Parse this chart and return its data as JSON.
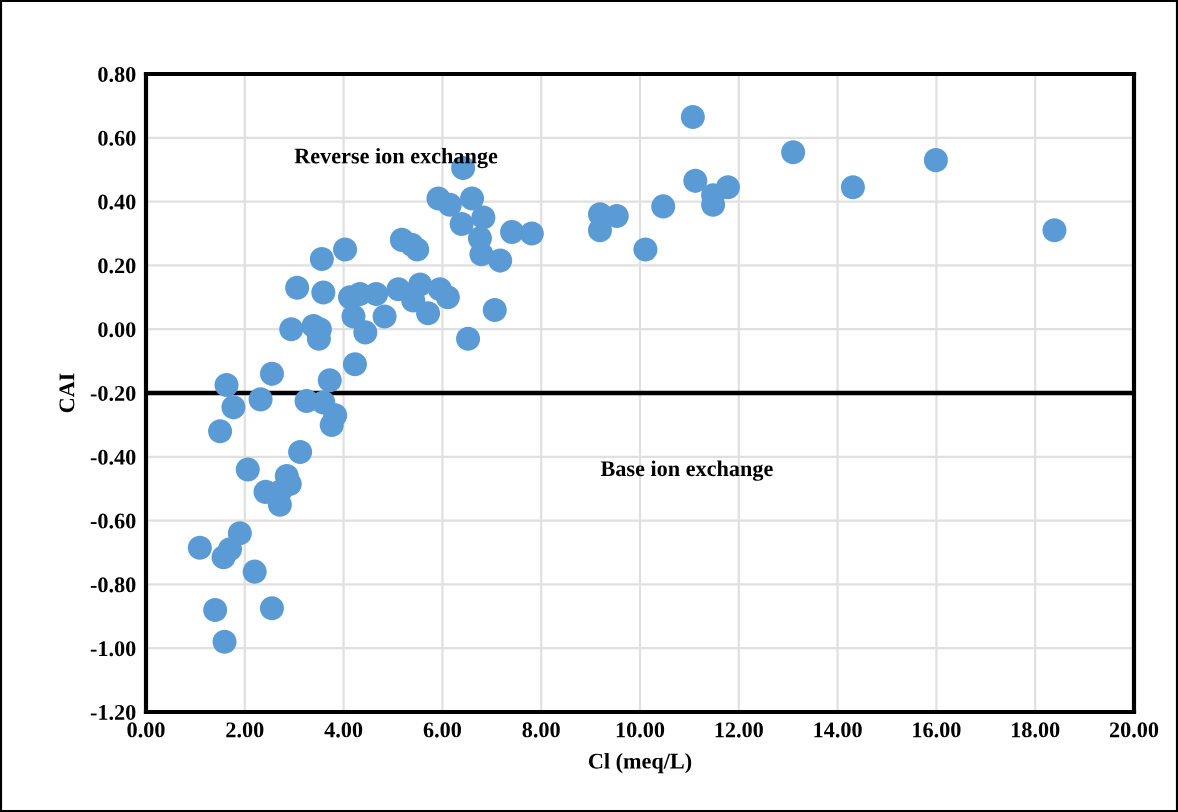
{
  "chart_data": {
    "type": "scatter",
    "xlabel": "Cl (meq/L)",
    "ylabel": "CAI",
    "annotations": [
      "Reverse ion exchange",
      "Base ion exchange"
    ],
    "x": [
      1.09,
      1.4,
      1.59,
      1.5,
      1.63,
      1.77,
      1.57,
      1.7,
      1.9,
      2.06,
      2.2,
      2.32,
      2.55,
      2.55,
      2.42,
      2.71,
      2.85,
      2.91,
      2.71,
      3.12,
      2.94,
      3.06,
      3.25,
      3.39,
      3.5,
      3.52,
      3.56,
      3.59,
      3.59,
      3.72,
      3.76,
      3.83,
      4.03,
      4.13,
      4.2,
      4.23,
      4.33,
      4.44,
      4.66,
      4.83,
      5.11,
      5.18,
      5.38,
      5.49,
      5.55,
      5.41,
      5.71,
      5.95,
      6.11,
      5.92,
      6.15,
      6.42,
      6.39,
      6.52,
      6.6,
      6.83,
      6.76,
      6.79,
      7.17,
      7.41,
      7.81,
      7.06,
      9.19,
      9.19,
      9.53,
      10.11,
      10.47,
      11.07,
      11.12,
      11.48,
      11.48,
      11.78,
      13.1,
      14.31,
      15.99,
      18.39
    ],
    "series": [
      {
        "color": "#5b9bd5",
        "values": [
          -0.685,
          -0.88,
          -0.98,
          -0.32,
          -0.175,
          -0.245,
          -0.715,
          -0.69,
          -0.64,
          -0.44,
          -0.76,
          -0.22,
          -0.14,
          -0.875,
          -0.51,
          -0.55,
          -0.46,
          -0.485,
          -0.51,
          -0.385,
          0.0,
          0.13,
          -0.225,
          0.01,
          -0.03,
          0.0,
          0.22,
          0.115,
          -0.23,
          -0.16,
          -0.3,
          -0.27,
          0.25,
          0.1,
          0.04,
          -0.11,
          0.11,
          -0.01,
          0.11,
          0.04,
          0.125,
          0.28,
          0.265,
          0.25,
          0.14,
          0.09,
          0.05,
          0.125,
          0.1,
          0.41,
          0.39,
          0.505,
          0.33,
          -0.03,
          0.41,
          0.35,
          0.285,
          0.235,
          0.215,
          0.305,
          0.3,
          0.06,
          0.36,
          0.31,
          0.355,
          0.25,
          0.385,
          0.665,
          0.465,
          0.42,
          0.39,
          0.445,
          0.555,
          0.445,
          0.53,
          0.31
        ]
      }
    ],
    "marker": "circle",
    "grid": true,
    "xlim": [
      0,
      20
    ],
    "xticks": [
      {
        "value": 0,
        "label": "0.00"
      },
      {
        "value": 2,
        "label": "2.00"
      },
      {
        "value": 4,
        "label": "4.00"
      },
      {
        "value": 6,
        "label": "6.00"
      },
      {
        "value": 8,
        "label": "8.00"
      },
      {
        "value": 10,
        "label": "10.00"
      },
      {
        "value": 12,
        "label": "12.00"
      },
      {
        "value": 14,
        "label": "14.00"
      },
      {
        "value": 16,
        "label": "16.00"
      },
      {
        "value": 18,
        "label": "18.00"
      },
      {
        "value": 20,
        "label": "20.00"
      }
    ],
    "ylim": [
      -1.2,
      0.8
    ],
    "yticks": [
      {
        "value": -1.2,
        "label": "-1.20"
      },
      {
        "value": -1.0,
        "label": "-1.00"
      },
      {
        "value": -0.8,
        "label": "-0.80"
      },
      {
        "value": -0.6,
        "label": "-0.60"
      },
      {
        "value": -0.4,
        "label": "-0.40"
      },
      {
        "value": -0.2,
        "label": "-0.20"
      },
      {
        "value": 0,
        "label": "0.00"
      },
      {
        "value": 0.2,
        "label": "0.20"
      },
      {
        "value": 0.4,
        "label": "0.40"
      },
      {
        "value": 0.6,
        "label": "0.60"
      },
      {
        "value": 0.8,
        "label": "0.80"
      }
    ],
    "ref_lines": [
      {
        "axis": "y",
        "value": -0.2,
        "label": null,
        "color": "#000000",
        "line_style": "solid"
      }
    ]
  }
}
